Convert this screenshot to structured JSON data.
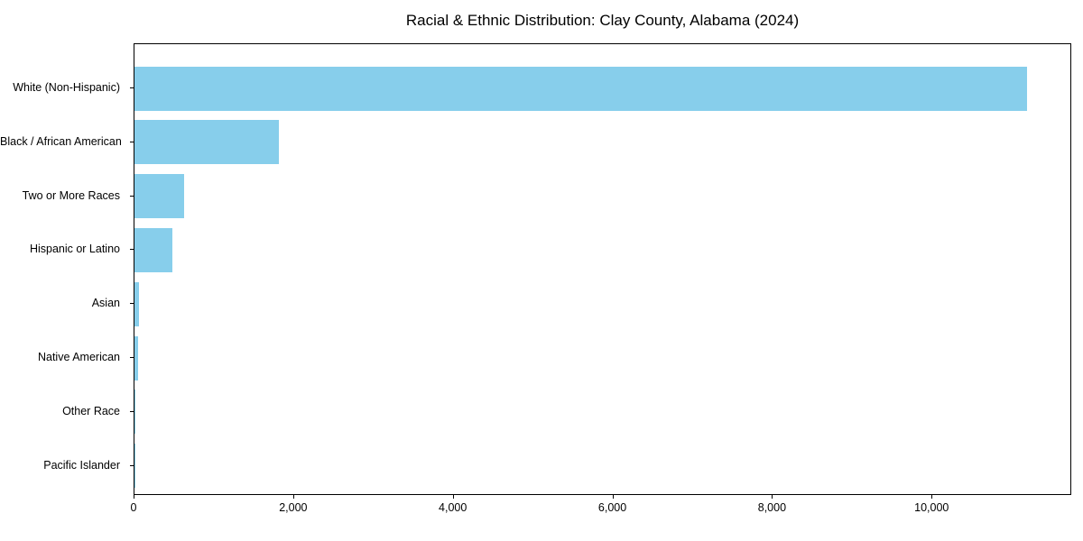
{
  "chart_data": {
    "type": "bar",
    "orientation": "horizontal",
    "title": "Racial & Ethnic Distribution: Clay County, Alabama (2024)",
    "xlabel": "",
    "ylabel": "",
    "categories": [
      "White (Non-Hispanic)",
      "Black / African American",
      "Two or More Races",
      "Hispanic or Latino",
      "Asian",
      "Native American",
      "Other Race",
      "Pacific Islander"
    ],
    "values": [
      11180,
      1810,
      620,
      470,
      60,
      45,
      10,
      3
    ],
    "xlim": [
      0,
      11750
    ],
    "xticks": [
      0,
      2000,
      4000,
      6000,
      8000,
      10000
    ],
    "xtick_labels": [
      "0",
      "2,000",
      "4,000",
      "6,000",
      "8,000",
      "10,000"
    ],
    "bar_color": "#87CEEB",
    "axis_color": "#000000",
    "text_color": "#000000",
    "background_color": "#ffffff",
    "grid": false,
    "legend": null
  }
}
